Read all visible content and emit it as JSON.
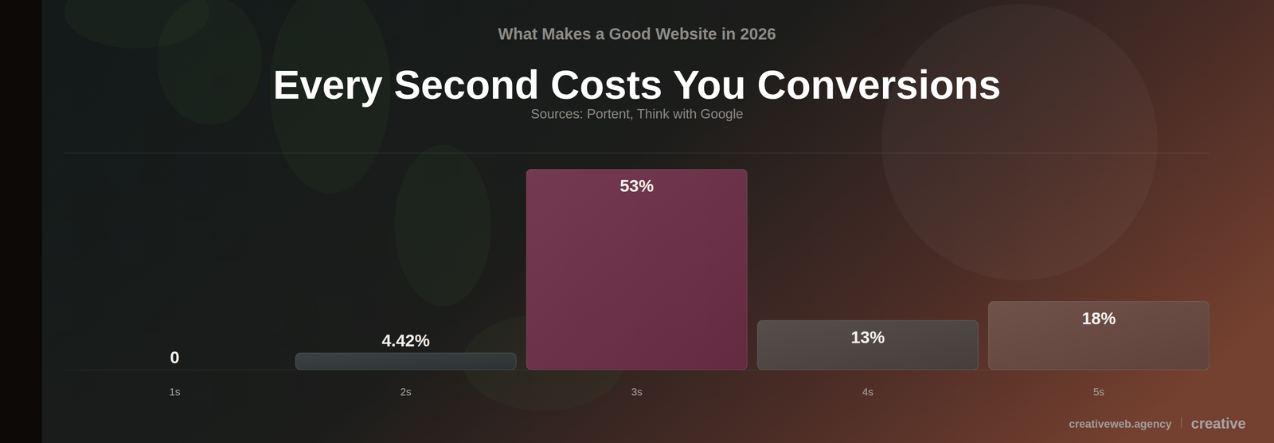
{
  "chart_data": {
    "type": "bar",
    "suptitle": "What Makes a Good Website in 2026",
    "title": "Every Second Costs You Conversions",
    "subtitle": "Sources: Portent, Think with Google",
    "categories": [
      "1s",
      "2s",
      "3s",
      "4s",
      "5s"
    ],
    "values": [
      0,
      4.42,
      53,
      13,
      18
    ],
    "value_labels": [
      "0",
      "4.42%",
      "53%",
      "13%",
      "18%"
    ],
    "colors": [
      "#2f3638",
      "#2f3638",
      "#6a2d45",
      "#4a4340",
      "#66473f"
    ],
    "ylim": [
      0,
      53
    ],
    "data_labels": true,
    "tick_labels": "x",
    "footer": [
      "creativeweb.agency",
      "creative"
    ]
  }
}
